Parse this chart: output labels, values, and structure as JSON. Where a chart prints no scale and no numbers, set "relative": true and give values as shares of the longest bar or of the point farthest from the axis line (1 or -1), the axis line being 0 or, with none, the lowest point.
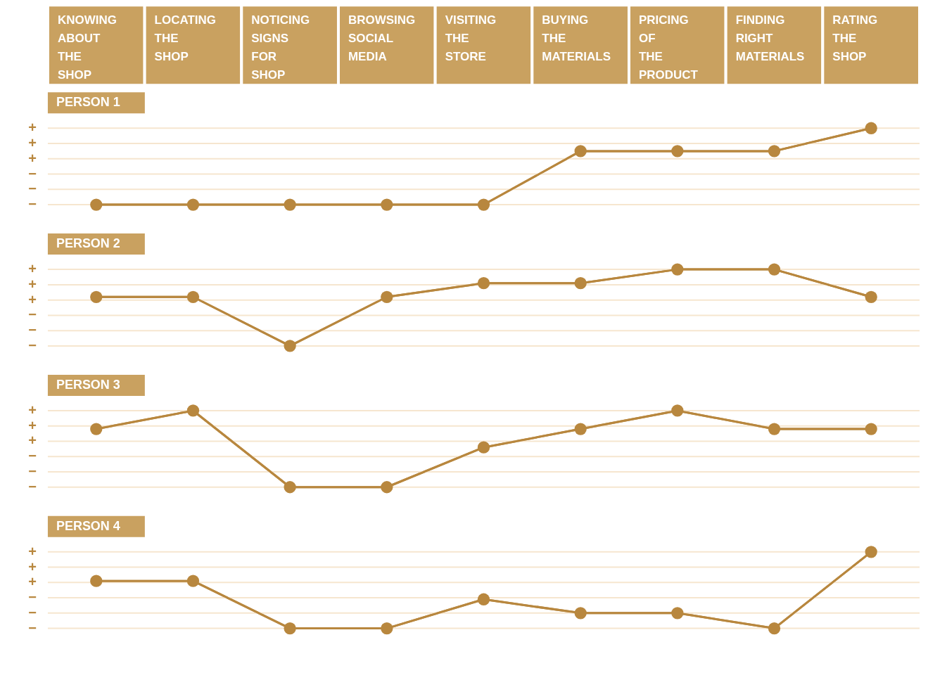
{
  "chart_data": [
    {
      "type": "line",
      "title": "PERSON 1",
      "categories": [
        "KNOWING ABOUT THE SHOP",
        "LOCATING THE SHOP",
        "NOTICING SIGNS FOR SHOP",
        "BROWSING SOCIAL MEDIA",
        "VISITING THE STORE",
        "BUYING THE MATERIALS",
        "PRICING OF THE PRODUCT",
        "FINDING RIGHT MATERIALS",
        "RATING THE SHOP"
      ],
      "values": [
        0,
        0,
        0,
        0,
        0,
        0.7,
        0.7,
        0.7,
        1
      ],
      "relative": true,
      "color": "#b8873e",
      "annotations": [
        "+",
        "+",
        "+",
        "−",
        "−",
        "−"
      ],
      "grid": "y",
      "marker": "circle",
      "tick_labels": "x"
    },
    {
      "type": "line",
      "title": "PERSON 2",
      "values": [
        0.64,
        0.64,
        0,
        0.64,
        0.82,
        0.82,
        1,
        1,
        0.64
      ],
      "relative": true,
      "color": "#b8873e",
      "annotations": [
        "+",
        "+",
        "+",
        "−",
        "−",
        "−"
      ],
      "grid": "y",
      "marker": "circle",
      "tick_labels": false
    },
    {
      "type": "line",
      "title": "PERSON 3",
      "values": [
        0.76,
        1,
        0,
        0,
        0.52,
        0.76,
        1,
        0.76,
        0.76
      ],
      "relative": true,
      "color": "#b8873e",
      "annotations": [
        "+",
        "+",
        "+",
        "−",
        "−",
        "−"
      ],
      "grid": "y",
      "marker": "circle",
      "tick_labels": false
    },
    {
      "type": "line",
      "title": "PERSON 4",
      "values": [
        0.62,
        0.62,
        0,
        0,
        0.38,
        0.2,
        0.2,
        0,
        1
      ],
      "relative": true,
      "color": "#b8873e",
      "annotations": [
        "+",
        "+",
        "+",
        "−",
        "−",
        "−"
      ],
      "grid": "y",
      "marker": "circle",
      "tick_labels": false
    }
  ]
}
